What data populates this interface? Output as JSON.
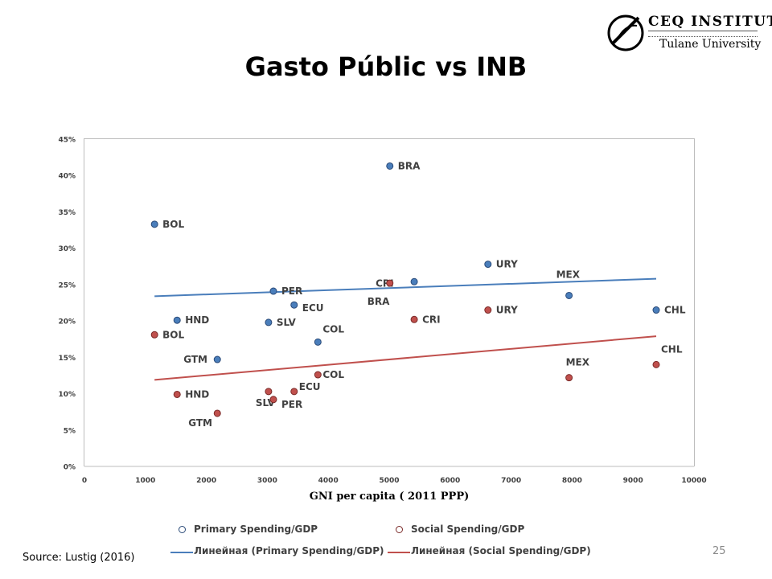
{
  "slide": {
    "title": "Gasto Públic vs INB",
    "source": "Source: Lustig (2016)",
    "page_number": "25"
  },
  "logo": {
    "name": "CEQ INSTITUTE",
    "university": "Tulane University"
  },
  "colors": {
    "primary": "#4a7ebb",
    "social": "#c0504d",
    "point_label": "#404040"
  },
  "chart_data": {
    "type": "scatter",
    "title": "",
    "xlabel": "GNI per capita ( 2011 PPP)",
    "ylabel": "",
    "xlim": [
      0,
      10000
    ],
    "ylim": [
      0,
      0.45
    ],
    "x_ticks": [
      "0",
      "1000",
      "2000",
      "3000",
      "4000",
      "5000",
      "6000",
      "7000",
      "8000",
      "9000",
      "10000"
    ],
    "y_ticks": [
      "0%",
      "5%",
      "10%",
      "15%",
      "20%",
      "25%",
      "30%",
      "35%",
      "40%",
      "45%"
    ],
    "grid": false,
    "legend_position": "bottom",
    "series": [
      {
        "name": "Primary Spending/GDP",
        "color": "#4a7ebb",
        "points": [
          {
            "label": "BOL",
            "x": 1150,
            "y": 0.333
          },
          {
            "label": "HND",
            "x": 1520,
            "y": 0.201
          },
          {
            "label": "GTM",
            "x": 2180,
            "y": 0.147
          },
          {
            "label": "SLV",
            "x": 3020,
            "y": 0.198
          },
          {
            "label": "PER",
            "x": 3100,
            "y": 0.241
          },
          {
            "label": "ECU",
            "x": 3440,
            "y": 0.222
          },
          {
            "label": "COL",
            "x": 3830,
            "y": 0.171
          },
          {
            "label": "BRA",
            "x": 5010,
            "y": 0.413
          },
          {
            "label": "CRI",
            "x": 5410,
            "y": 0.254
          },
          {
            "label": "URY",
            "x": 6620,
            "y": 0.278
          },
          {
            "label": "MEX",
            "x": 7950,
            "y": 0.235
          },
          {
            "label": "CHL",
            "x": 9380,
            "y": 0.215
          }
        ]
      },
      {
        "name": "Social Spending/GDP",
        "color": "#c0504d",
        "points": [
          {
            "label": "BOL",
            "x": 1150,
            "y": 0.181
          },
          {
            "label": "HND",
            "x": 1520,
            "y": 0.099
          },
          {
            "label": "GTM",
            "x": 2180,
            "y": 0.073
          },
          {
            "label": "SLV",
            "x": 3020,
            "y": 0.103
          },
          {
            "label": "PER",
            "x": 3100,
            "y": 0.092
          },
          {
            "label": "ECU",
            "x": 3440,
            "y": 0.103
          },
          {
            "label": "COL",
            "x": 3830,
            "y": 0.126
          },
          {
            "label": "BRA",
            "x": 5010,
            "y": 0.252
          },
          {
            "label": "CRI",
            "x": 5410,
            "y": 0.202
          },
          {
            "label": "URY",
            "x": 6620,
            "y": 0.215
          },
          {
            "label": "MEX",
            "x": 7950,
            "y": 0.122
          },
          {
            "label": "CHL",
            "x": 9380,
            "y": 0.14
          }
        ]
      }
    ],
    "trendlines": [
      {
        "name": "Линейная (Primary Spending/GDP)",
        "color": "#4a7ebb",
        "x": [
          1150,
          9380
        ],
        "y": [
          0.234,
          0.258
        ]
      },
      {
        "name": "Линейная (Social Spending/GDP)",
        "color": "#c0504d",
        "x": [
          1150,
          9380
        ],
        "y": [
          0.119,
          0.179
        ]
      }
    ]
  }
}
